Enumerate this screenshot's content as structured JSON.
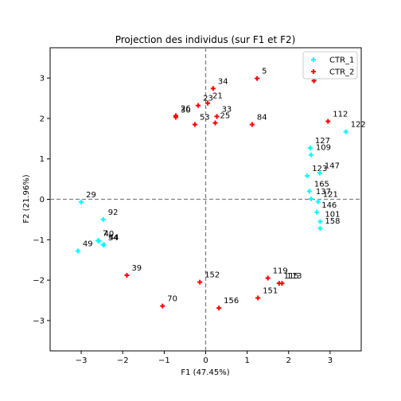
{
  "chart_data": {
    "type": "scatter",
    "title": "Projection des individus (sur F1 et F2)",
    "xlabel": "F1 (47.45%)",
    "ylabel": "F2 (21.96%)",
    "xlim": [
      -3.75,
      3.75
    ],
    "ylim": [
      -3.75,
      3.75
    ],
    "xticks": [
      -3,
      -2,
      -1,
      0,
      1,
      2,
      3
    ],
    "yticks": [
      -3,
      -2,
      -1,
      0,
      1,
      2,
      3
    ],
    "reference_lines": {
      "x": 0,
      "y": 0,
      "style": "dashed"
    },
    "legend_position": "top-right",
    "series": [
      {
        "name": "CTR_1",
        "color": "#00ffff",
        "marker": "plus",
        "points": [
          {
            "label": "166",
            "x": 2.62,
            "y": 2.95
          },
          {
            "label": "122",
            "x": 3.38,
            "y": 1.67
          },
          {
            "label": "127",
            "x": 2.52,
            "y": 1.27
          },
          {
            "label": "109",
            "x": 2.54,
            "y": 1.1
          },
          {
            "label": "123",
            "x": 2.45,
            "y": 0.58
          },
          {
            "label": "147",
            "x": 2.75,
            "y": 0.65
          },
          {
            "label": "165",
            "x": 2.5,
            "y": 0.2
          },
          {
            "label": "137",
            "x": 2.54,
            "y": 0.01
          },
          {
            "label": "121",
            "x": 2.71,
            "y": -0.06
          },
          {
            "label": "146",
            "x": 2.68,
            "y": -0.32
          },
          {
            "label": "101",
            "x": 2.76,
            "y": -0.55
          },
          {
            "label": "158",
            "x": 2.76,
            "y": -0.72
          },
          {
            "label": "29",
            "x": -3.0,
            "y": -0.07
          },
          {
            "label": "92",
            "x": -2.47,
            "y": -0.5
          },
          {
            "label": "40",
            "x": -2.57,
            "y": -1.03
          },
          {
            "label": "7",
            "x": -2.6,
            "y": -1.02
          },
          {
            "label": "54",
            "x": -2.47,
            "y": -1.13
          },
          {
            "label": "44",
            "x": -2.45,
            "y": -1.12
          },
          {
            "label": "49",
            "x": -3.08,
            "y": -1.28
          }
        ]
      },
      {
        "name": "CTR_2",
        "color": "#ff0000",
        "marker": "plus",
        "points": [
          {
            "label": "5",
            "x": 1.24,
            "y": 2.99
          },
          {
            "label": "160",
            "x": 2.61,
            "y": 2.93
          },
          {
            "label": "34",
            "x": 0.18,
            "y": 2.74
          },
          {
            "label": "21",
            "x": 0.05,
            "y": 2.38
          },
          {
            "label": "23",
            "x": -0.18,
            "y": 2.32
          },
          {
            "label": "26",
            "x": -0.72,
            "y": 2.07
          },
          {
            "label": "30",
            "x": -0.72,
            "y": 2.03
          },
          {
            "label": "33",
            "x": 0.27,
            "y": 2.05
          },
          {
            "label": "25",
            "x": 0.23,
            "y": 1.89
          },
          {
            "label": "53",
            "x": -0.26,
            "y": 1.85
          },
          {
            "label": "84",
            "x": 1.12,
            "y": 1.85
          },
          {
            "label": "112",
            "x": 2.95,
            "y": 1.93
          },
          {
            "label": "119",
            "x": 1.5,
            "y": -1.95
          },
          {
            "label": "115",
            "x": 1.77,
            "y": -2.08
          },
          {
            "label": "113",
            "x": 1.84,
            "y": -2.08
          },
          {
            "label": "151",
            "x": 1.26,
            "y": -2.44
          },
          {
            "label": "39",
            "x": -1.9,
            "y": -1.88
          },
          {
            "label": "152",
            "x": -0.14,
            "y": -2.05
          },
          {
            "label": "70",
            "x": -1.04,
            "y": -2.64
          },
          {
            "label": "156",
            "x": 0.32,
            "y": -2.69
          }
        ]
      }
    ]
  }
}
